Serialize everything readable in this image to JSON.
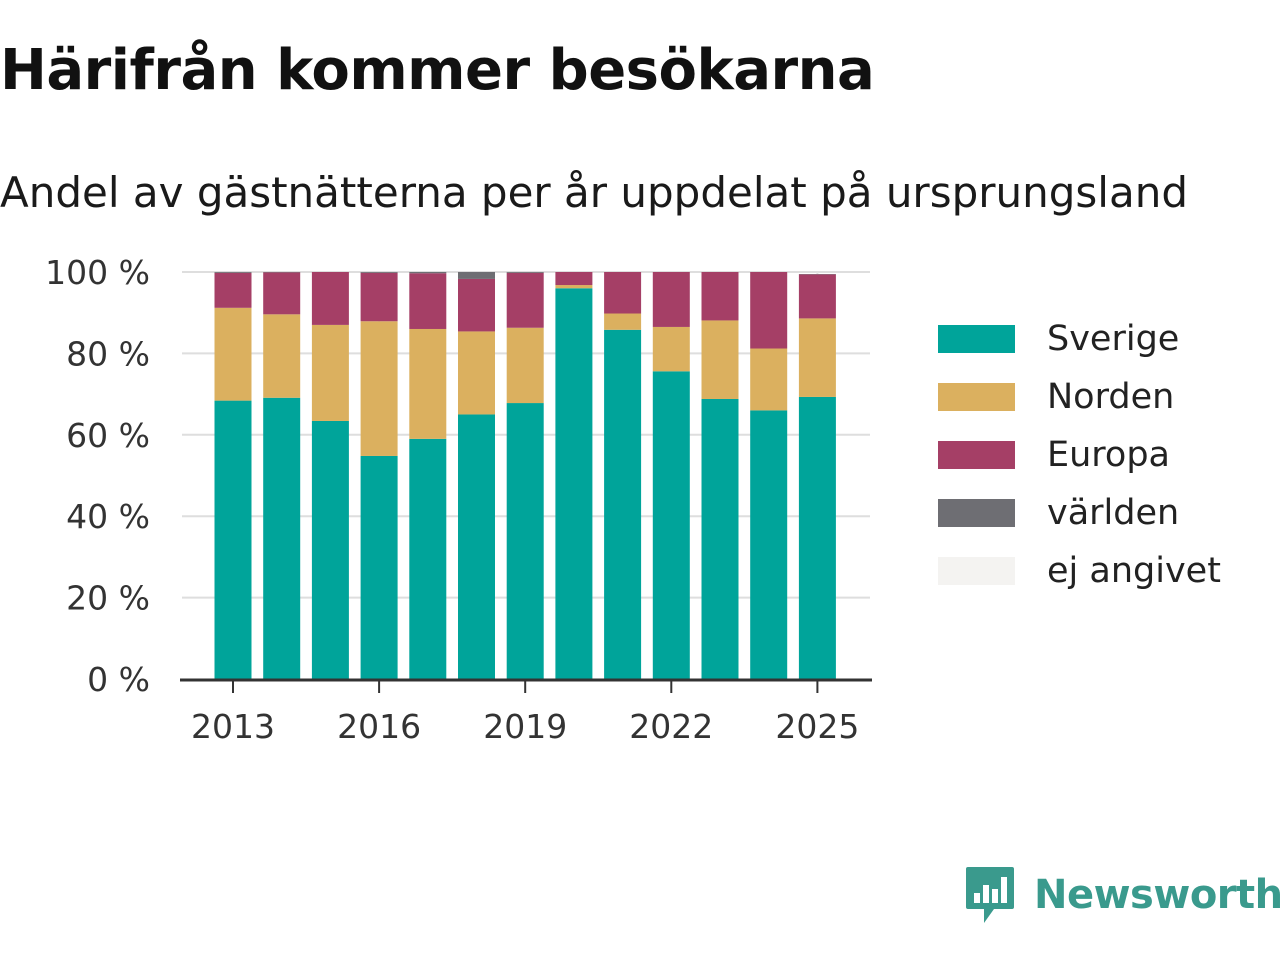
{
  "title": "Härifrån kommer besökarna",
  "subtitle": "Andel av gästnätterna per år uppdelat på ursprungsland",
  "brand": {
    "name": "Newsworthy",
    "icon": "newsworthy-logo-icon",
    "color": "#3a9a8d"
  },
  "chart_data": {
    "type": "bar",
    "stacked": true,
    "title": "Härifrån kommer besökarna",
    "subtitle": "Andel av gästnätterna per år uppdelat på ursprungsland",
    "xlabel": "",
    "ylabel": "",
    "ylim": [
      0,
      100
    ],
    "y_tick_values": [
      0,
      20,
      40,
      60,
      80,
      100
    ],
    "y_tick_labels": [
      "0 %",
      "20 %",
      "40 %",
      "60 %",
      "80 %",
      "100 %"
    ],
    "x_tick_labels": [
      "2013",
      "2016",
      "2019",
      "2022",
      "2025"
    ],
    "grid": true,
    "legend_position": "right",
    "categories": [
      "2013",
      "2014",
      "2015",
      "2016",
      "2017",
      "2018",
      "2019",
      "2020",
      "2021",
      "2022",
      "2023",
      "2024",
      "2025"
    ],
    "series": [
      {
        "name": "Sverige",
        "color": "#00a49a",
        "values": [
          68.4,
          69.1,
          63.4,
          54.8,
          59,
          65,
          67.8,
          96,
          85.8,
          75.6,
          68.8,
          66,
          69.3
        ]
      },
      {
        "name": "Norden",
        "color": "#dbb05f",
        "values": [
          22.8,
          20.5,
          23.6,
          33.1,
          27,
          20.4,
          18.5,
          0.8,
          4,
          10.9,
          19.3,
          15.2,
          19.3
        ]
      },
      {
        "name": "Europa",
        "color": "#a53f66",
        "values": [
          8.6,
          10.3,
          13,
          11.9,
          13.7,
          12.9,
          13.5,
          3.2,
          10.2,
          13.5,
          11.9,
          18.8,
          10.8
        ]
      },
      {
        "name": "världen",
        "color": "#6e6e73",
        "values": [
          0.2,
          0.1,
          0,
          0.2,
          0.3,
          1.7,
          0.2,
          0,
          0,
          0,
          0,
          0,
          0.1
        ]
      },
      {
        "name": "ej angivet",
        "color": "#f4f3f1",
        "values": [
          0,
          0,
          0,
          0,
          0,
          0,
          0,
          0,
          0,
          0,
          0,
          0,
          0
        ]
      }
    ]
  }
}
